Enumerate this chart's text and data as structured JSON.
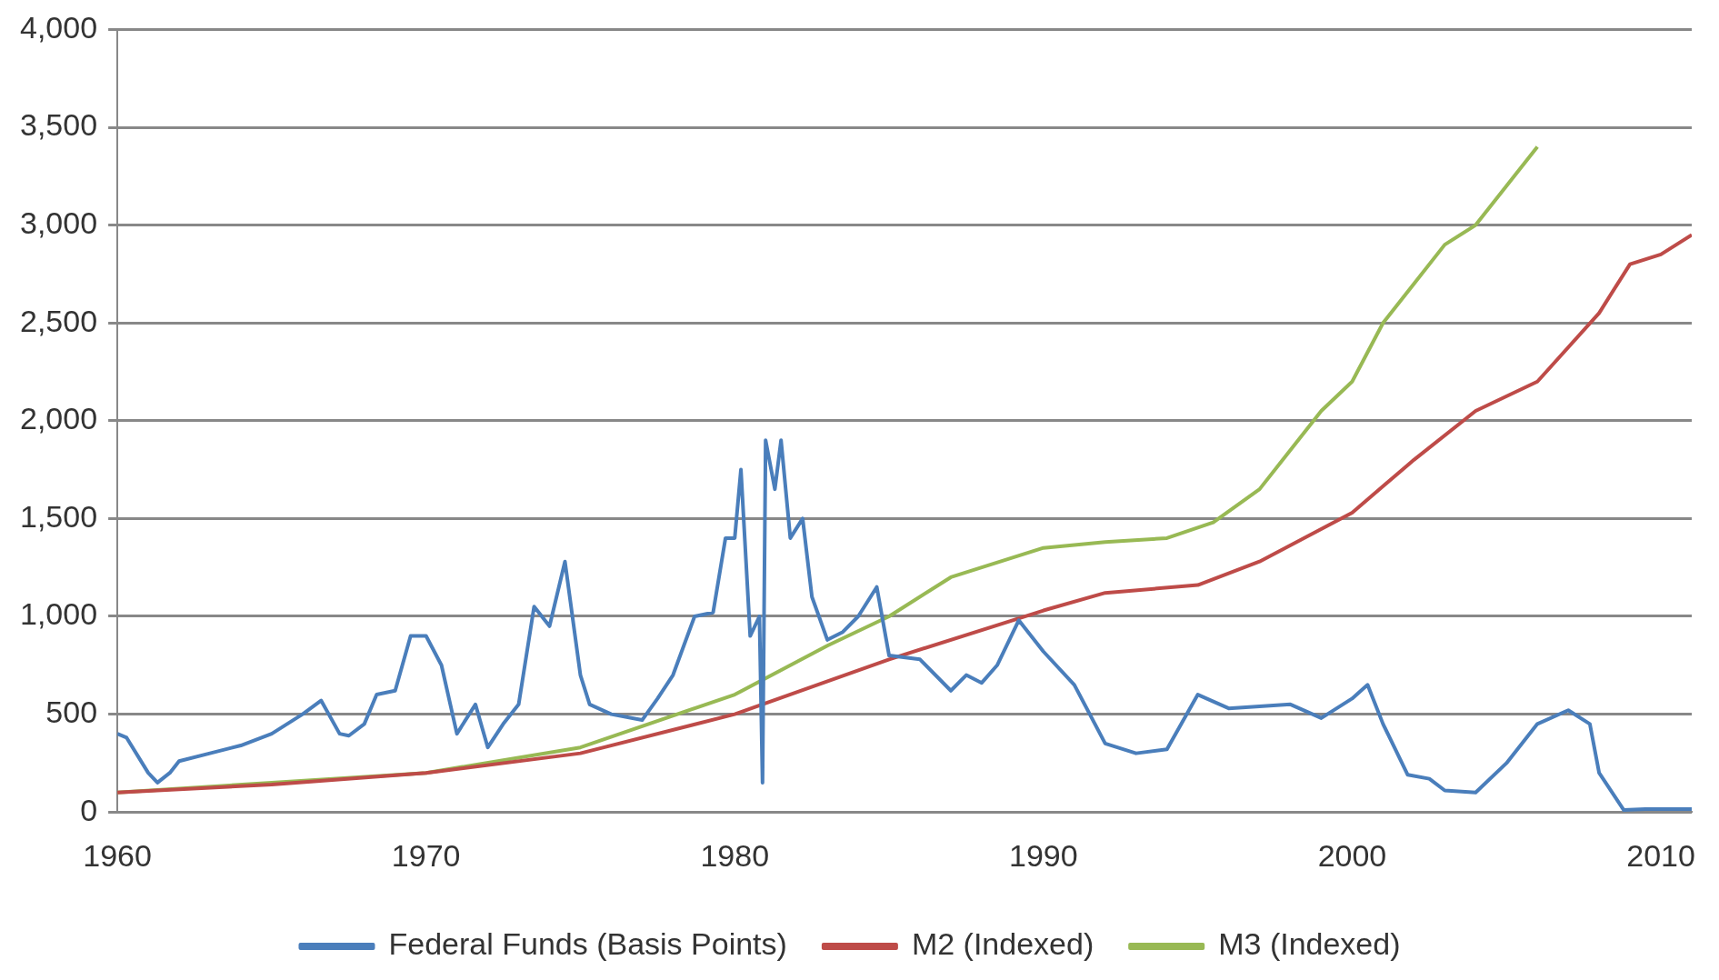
{
  "chart_data": {
    "type": "line",
    "xlim": [
      1960,
      2011
    ],
    "xticks": [
      1960,
      1970,
      1980,
      1990,
      2000,
      2010
    ],
    "ylim": [
      0,
      4000
    ],
    "yticks": [
      {
        "value": 0,
        "label": "0"
      },
      {
        "value": 500,
        "label": "500"
      },
      {
        "value": 1000,
        "label": "1,000"
      },
      {
        "value": 1500,
        "label": "1,500"
      },
      {
        "value": 2000,
        "label": "2,000"
      },
      {
        "value": 2500,
        "label": "2,500"
      },
      {
        "value": 3000,
        "label": "3,000"
      },
      {
        "value": 3500,
        "label": "3,500"
      },
      {
        "value": 4000,
        "label": "4,000"
      }
    ],
    "grid": "y",
    "legend": "bottom",
    "marker": "none",
    "line_style": "solid",
    "series": [
      {
        "name": "Federal Funds (Basis Points)",
        "color": "#4a7ebb",
        "x": [
          1960,
          1960.3,
          1961,
          1961.3,
          1961.7,
          1962,
          1963,
          1964,
          1965,
          1966,
          1966.6,
          1967.2,
          1967.5,
          1968,
          1968.4,
          1969,
          1969.5,
          1970,
          1970.5,
          1971,
          1971.6,
          1972,
          1972.5,
          1973,
          1973.5,
          1974,
          1974.5,
          1975,
          1975.3,
          1976,
          1977,
          1977.5,
          1978,
          1978.7,
          1979.3,
          1979.7,
          1980,
          1980.2,
          1980.5,
          1980.8,
          1980.9,
          1981,
          1981.3,
          1981.5,
          1981.8,
          1982.2,
          1982.5,
          1983,
          1983.5,
          1984,
          1984.6,
          1985,
          1986,
          1987,
          1987.5,
          1988,
          1988.5,
          1989.2,
          1990,
          1991,
          1992,
          1993,
          1994,
          1995,
          1996,
          1997,
          1998,
          1999,
          2000,
          2000.5,
          2001,
          2001.8,
          2002.5,
          2003,
          2004,
          2005,
          2006,
          2007,
          2007.7,
          2008,
          2008.8,
          2009.5,
          2011
        ],
        "values": [
          400,
          380,
          200,
          150,
          200,
          260,
          300,
          340,
          400,
          500,
          570,
          400,
          390,
          450,
          600,
          620,
          900,
          900,
          750,
          400,
          550,
          330,
          450,
          550,
          1050,
          950,
          1280,
          700,
          550,
          500,
          470,
          580,
          700,
          1000,
          1020,
          1400,
          1400,
          1750,
          900,
          1000,
          150,
          1900,
          1650,
          1900,
          1400,
          1500,
          1100,
          880,
          920,
          1000,
          1150,
          800,
          780,
          620,
          700,
          660,
          750,
          980,
          820,
          650,
          350,
          300,
          320,
          600,
          530,
          540,
          550,
          480,
          580,
          650,
          450,
          190,
          170,
          110,
          100,
          250,
          450,
          520,
          450,
          200,
          10,
          15,
          15
        ]
      },
      {
        "name": "M2 (Indexed)",
        "color": "#be4b48",
        "x": [
          1960,
          1965,
          1970,
          1975,
          1980,
          1985,
          1990,
          1992,
          1995,
          1997,
          2000,
          2002,
          2004,
          2006,
          2008,
          2009,
          2010,
          2011
        ],
        "values": [
          100,
          140,
          200,
          300,
          500,
          780,
          1030,
          1120,
          1160,
          1280,
          1530,
          1800,
          2050,
          2200,
          2550,
          2800,
          2850,
          2950
        ]
      },
      {
        "name": "M3 (Indexed)",
        "color": "#98b954",
        "x": [
          1960,
          1965,
          1970,
          1975,
          1980,
          1983,
          1985,
          1987,
          1990,
          1992,
          1994,
          1995.5,
          1997,
          1999,
          2000,
          2001,
          2002,
          2003,
          2004,
          2005,
          2006
        ],
        "values": [
          100,
          150,
          200,
          330,
          600,
          850,
          1000,
          1200,
          1350,
          1380,
          1400,
          1480,
          1650,
          2050,
          2200,
          2500,
          2700,
          2900,
          3000,
          3200,
          3400
        ]
      }
    ]
  }
}
